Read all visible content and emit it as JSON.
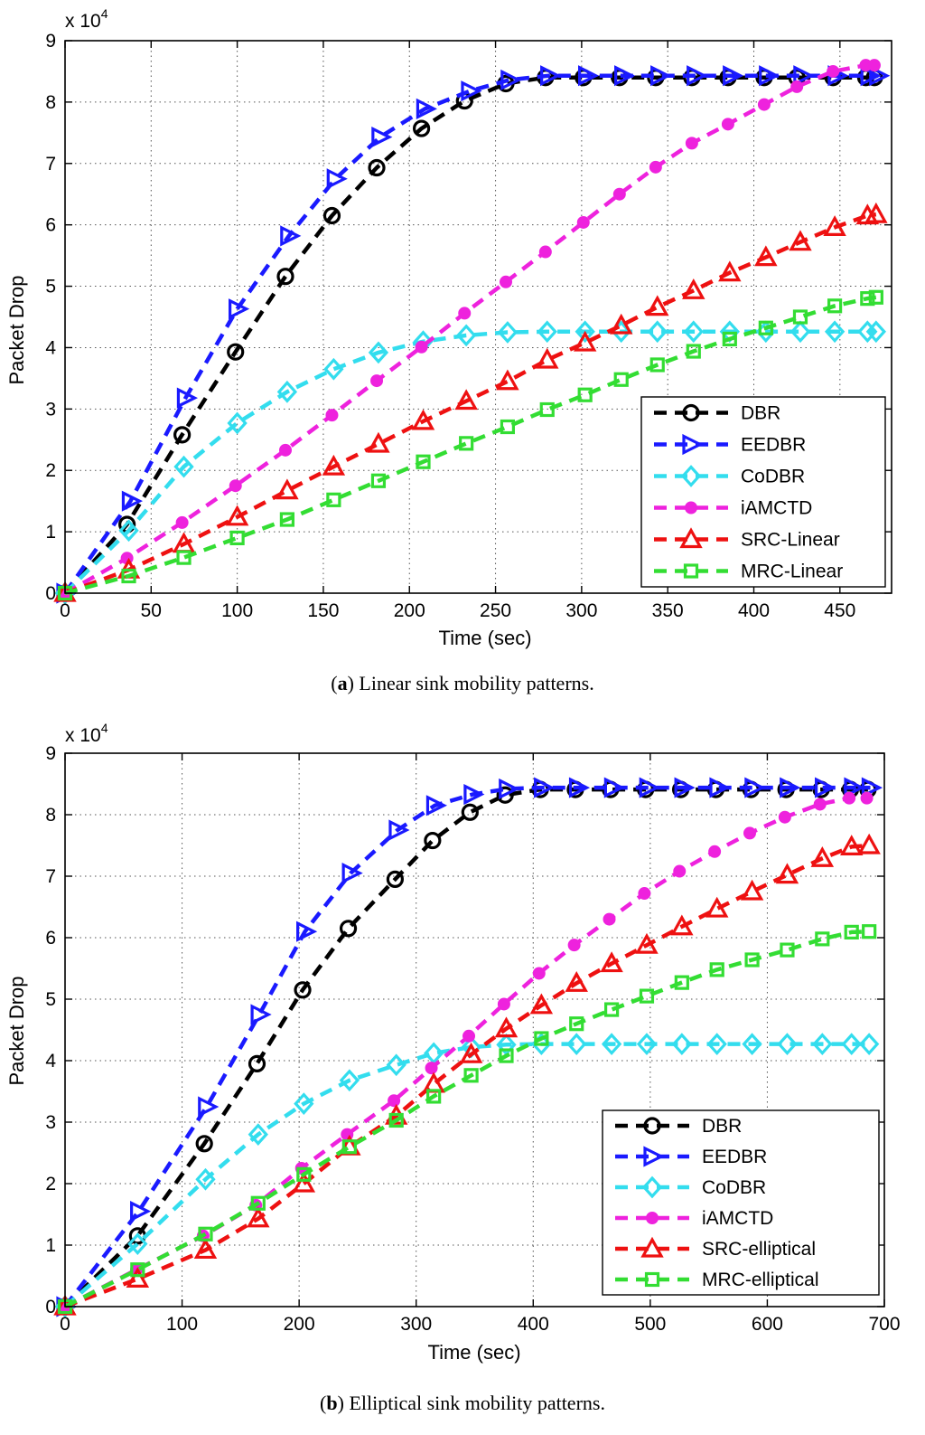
{
  "captions": [
    {
      "label": "a",
      "text": "Linear sink mobility patterns."
    },
    {
      "label": "b",
      "text": "Elliptical sink mobility patterns."
    }
  ],
  "chart_data": [
    {
      "type": "line",
      "xlabel": "Time (sec)",
      "ylabel": "Packet Drop",
      "y_multiplier": "x 10",
      "y_multiplier_exp": "4",
      "xlim": [
        0,
        480
      ],
      "ylim": [
        0,
        9
      ],
      "xticks": [
        0,
        50,
        100,
        150,
        200,
        250,
        300,
        350,
        400,
        450
      ],
      "yticks": [
        0,
        1,
        2,
        3,
        4,
        5,
        6,
        7,
        8,
        9
      ],
      "grid": true,
      "legend_position": "lower-right",
      "series": [
        {
          "name": "DBR",
          "color": "#000000",
          "marker": "circle",
          "x": [
            0,
            36,
            68,
            99,
            128,
            155,
            181,
            207,
            232,
            256,
            279,
            301,
            322,
            343,
            364,
            385,
            406,
            425,
            446,
            465,
            470
          ],
          "y": [
            0,
            1.12,
            2.58,
            3.93,
            5.16,
            6.15,
            6.93,
            7.57,
            8.02,
            8.3,
            8.4,
            8.4,
            8.4,
            8.4,
            8.4,
            8.4,
            8.4,
            8.4,
            8.4,
            8.4,
            8.4
          ]
        },
        {
          "name": "EEDBR",
          "color": "#1a1aff",
          "marker": "triangle-right",
          "x": [
            0,
            38,
            70,
            100,
            130,
            157,
            183,
            209,
            235,
            258,
            281,
            303,
            324,
            345,
            366,
            387,
            408,
            428,
            448,
            467,
            472
          ],
          "y": [
            0,
            1.5,
            3.18,
            4.63,
            5.82,
            6.75,
            7.43,
            7.89,
            8.18,
            8.36,
            8.43,
            8.43,
            8.43,
            8.43,
            8.43,
            8.43,
            8.43,
            8.43,
            8.43,
            8.43,
            8.43
          ]
        },
        {
          "name": "CoDBR",
          "color": "#33ddee",
          "marker": "diamond",
          "x": [
            0,
            37,
            69,
            100,
            129,
            156,
            182,
            208,
            233,
            257,
            280,
            302,
            323,
            344,
            365,
            386,
            407,
            427,
            447,
            466,
            471
          ],
          "y": [
            0,
            1.02,
            2.06,
            2.77,
            3.28,
            3.65,
            3.92,
            4.1,
            4.2,
            4.25,
            4.26,
            4.26,
            4.26,
            4.26,
            4.26,
            4.26,
            4.26,
            4.26,
            4.26,
            4.26,
            4.26
          ]
        },
        {
          "name": "iAMCTD",
          "color": "#ee22dd",
          "marker": "dot",
          "x": [
            0,
            36,
            68,
            99,
            128,
            155,
            181,
            207,
            232,
            256,
            279,
            301,
            322,
            343,
            364,
            385,
            406,
            425,
            446,
            465,
            470
          ],
          "y": [
            0,
            0.57,
            1.15,
            1.75,
            2.33,
            2.9,
            3.46,
            4.01,
            4.56,
            5.07,
            5.56,
            6.04,
            6.5,
            6.94,
            7.33,
            7.64,
            7.96,
            8.25,
            8.5,
            8.6,
            8.6
          ]
        },
        {
          "name": "SRC-Linear",
          "color": "#ee1111",
          "marker": "triangle-up",
          "x": [
            0,
            37,
            69,
            100,
            129,
            156,
            182,
            208,
            233,
            257,
            280,
            302,
            323,
            344,
            365,
            386,
            407,
            427,
            447,
            466,
            471
          ],
          "y": [
            0,
            0.38,
            0.8,
            1.24,
            1.67,
            2.06,
            2.43,
            2.8,
            3.13,
            3.45,
            3.8,
            4.08,
            4.36,
            4.66,
            4.93,
            5.22,
            5.47,
            5.72,
            5.96,
            6.15,
            6.17
          ]
        },
        {
          "name": "MRC-Linear",
          "color": "#33dd33",
          "marker": "square",
          "x": [
            0,
            37,
            69,
            100,
            129,
            156,
            182,
            208,
            233,
            257,
            280,
            302,
            323,
            344,
            365,
            386,
            407,
            427,
            447,
            466,
            471
          ],
          "y": [
            0,
            0.28,
            0.58,
            0.9,
            1.2,
            1.52,
            1.83,
            2.14,
            2.44,
            2.71,
            2.99,
            3.23,
            3.48,
            3.72,
            3.94,
            4.14,
            4.32,
            4.5,
            4.68,
            4.8,
            4.82
          ]
        }
      ]
    },
    {
      "type": "line",
      "xlabel": "Time (sec)",
      "ylabel": "Packet Drop",
      "y_multiplier": "x 10",
      "y_multiplier_exp": "4",
      "xlim": [
        0,
        700
      ],
      "ylim": [
        0,
        9
      ],
      "xticks": [
        0,
        100,
        200,
        300,
        400,
        500,
        600,
        700
      ],
      "yticks": [
        0,
        1,
        2,
        3,
        4,
        5,
        6,
        7,
        8,
        9
      ],
      "grid": true,
      "legend_position": "lower-right",
      "series": [
        {
          "name": "DBR",
          "color": "#000000",
          "marker": "circle",
          "x": [
            0,
            62,
            119,
            164,
            203,
            242,
            282,
            314,
            346,
            376,
            406,
            436,
            466,
            496,
            526,
            556,
            586,
            616,
            646,
            671,
            686
          ],
          "y": [
            0,
            1.15,
            2.65,
            3.95,
            5.15,
            6.15,
            6.95,
            7.58,
            8.04,
            8.32,
            8.41,
            8.41,
            8.41,
            8.41,
            8.41,
            8.41,
            8.41,
            8.41,
            8.41,
            8.41,
            8.41
          ]
        },
        {
          "name": "EEDBR",
          "color": "#1a1aff",
          "marker": "triangle-right",
          "x": [
            0,
            63,
            121,
            166,
            205,
            244,
            284,
            316,
            348,
            378,
            408,
            438,
            468,
            498,
            528,
            558,
            588,
            618,
            648,
            673,
            688
          ],
          "y": [
            0,
            1.55,
            3.25,
            4.75,
            6.1,
            7.05,
            7.75,
            8.15,
            8.33,
            8.42,
            8.44,
            8.44,
            8.44,
            8.44,
            8.44,
            8.44,
            8.44,
            8.44,
            8.44,
            8.44,
            8.44
          ]
        },
        {
          "name": "CoDBR",
          "color": "#33ddee",
          "marker": "diamond",
          "x": [
            0,
            62,
            120,
            165,
            204,
            243,
            283,
            315,
            347,
            377,
            407,
            437,
            467,
            497,
            527,
            557,
            587,
            617,
            647,
            672,
            687
          ],
          "y": [
            0,
            1.02,
            2.07,
            2.8,
            3.3,
            3.68,
            3.93,
            4.12,
            4.22,
            4.26,
            4.27,
            4.27,
            4.27,
            4.27,
            4.27,
            4.27,
            4.27,
            4.27,
            4.27,
            4.27,
            4.27
          ]
        },
        {
          "name": "iAMCTD",
          "color": "#ee22dd",
          "marker": "dot",
          "x": [
            0,
            61,
            118,
            163,
            202,
            241,
            281,
            313,
            345,
            375,
            405,
            435,
            465,
            495,
            525,
            555,
            585,
            615,
            645,
            670,
            685
          ],
          "y": [
            0,
            0.6,
            1.15,
            1.65,
            2.25,
            2.8,
            3.35,
            3.88,
            4.4,
            4.92,
            5.42,
            5.88,
            6.3,
            6.72,
            7.08,
            7.4,
            7.7,
            7.96,
            8.17,
            8.27,
            8.27
          ]
        },
        {
          "name": "SRC-elliptical",
          "color": "#ee1111",
          "marker": "triangle-up",
          "x": [
            0,
            62,
            120,
            165,
            204,
            243,
            283,
            315,
            347,
            377,
            407,
            437,
            467,
            497,
            527,
            557,
            587,
            617,
            647,
            672,
            687
          ],
          "y": [
            0,
            0.45,
            0.92,
            1.43,
            2.0,
            2.6,
            3.1,
            3.62,
            4.1,
            4.52,
            4.9,
            5.26,
            5.58,
            5.88,
            6.18,
            6.47,
            6.75,
            7.02,
            7.29,
            7.48,
            7.5
          ]
        },
        {
          "name": "MRC-elliptical",
          "color": "#33dd33",
          "marker": "square",
          "x": [
            0,
            62,
            120,
            165,
            204,
            243,
            283,
            315,
            347,
            377,
            407,
            437,
            467,
            497,
            527,
            557,
            587,
            617,
            647,
            672,
            687
          ],
          "y": [
            0,
            0.6,
            1.18,
            1.68,
            2.15,
            2.6,
            3.03,
            3.42,
            3.76,
            4.08,
            4.36,
            4.6,
            4.83,
            5.05,
            5.27,
            5.48,
            5.64,
            5.8,
            5.98,
            6.09,
            6.1
          ]
        }
      ]
    }
  ]
}
